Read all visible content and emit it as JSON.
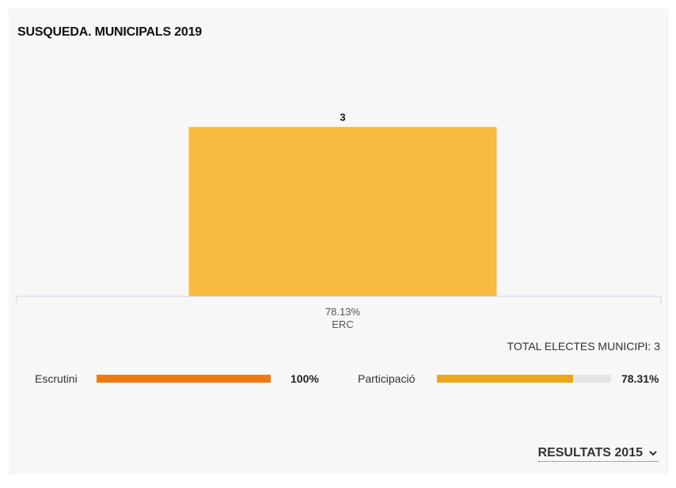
{
  "title": "SUSQUEDA. MUNICIPALS 2019",
  "chart_data": {
    "type": "bar",
    "categories": [
      "ERC"
    ],
    "values": [
      3
    ],
    "category_percentages": [
      "78.13%"
    ],
    "ylim": [
      0,
      3.2
    ],
    "grid": false,
    "colors": [
      "#f8bb40"
    ]
  },
  "total_label": "TOTAL ELECTES MUNICIPI: 3",
  "escrutini": {
    "label": "Escrutini",
    "value_text": "100%",
    "fraction": 1.0,
    "color": "#f07a12"
  },
  "participacio": {
    "label": "Participació",
    "value_text": "78.31%",
    "fraction": 0.7831,
    "color": "#eba61c"
  },
  "results_link": "RESULTATS 2015",
  "icons": {
    "results_link": "chevron-down-icon"
  }
}
